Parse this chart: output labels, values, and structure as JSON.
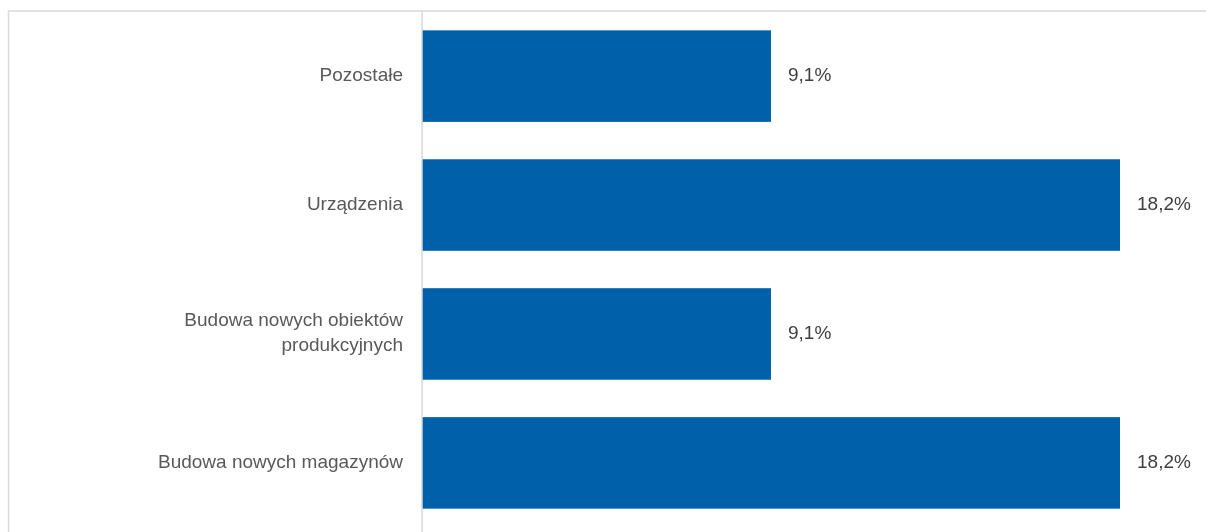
{
  "chart_data": {
    "type": "bar",
    "orientation": "horizontal",
    "categories": [
      "Pozostałe",
      "Urządzenia",
      "Budowa nowych obiektów produkcyjnych",
      "Budowa nowych magazynów"
    ],
    "values": [
      9.1,
      18.2,
      9.1,
      18.2
    ],
    "color": "#0061ab",
    "value_labels": [
      "9,1%",
      "18,2%",
      "9,1%",
      "18,2%"
    ]
  }
}
